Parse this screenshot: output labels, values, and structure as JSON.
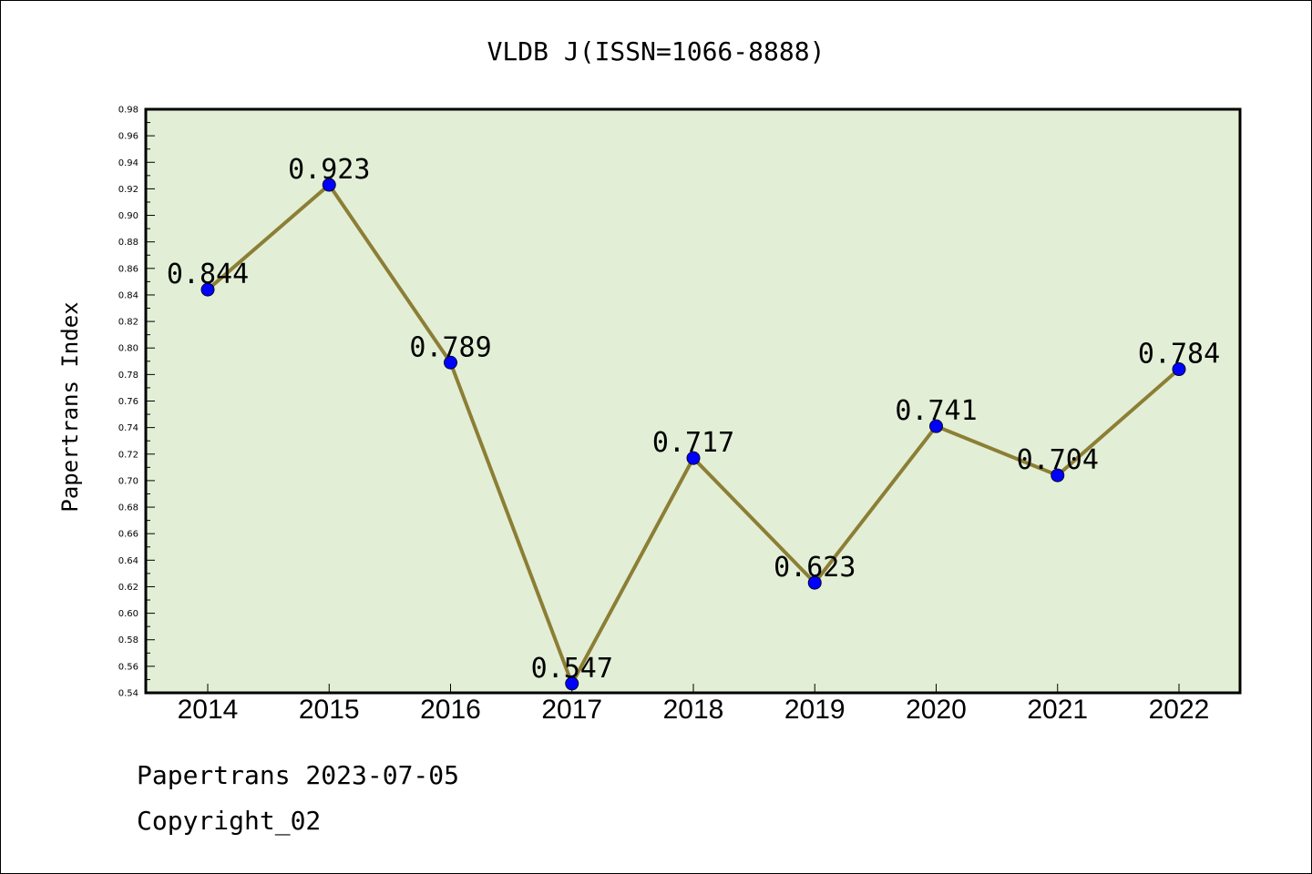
{
  "chart_data": {
    "type": "line",
    "title": "VLDB J(ISSN=1066-8888)",
    "xlabel": "",
    "ylabel": "Papertrans Index",
    "categories": [
      "2014",
      "2015",
      "2016",
      "2017",
      "2018",
      "2019",
      "2020",
      "2021",
      "2022"
    ],
    "series": [
      {
        "values": [
          0.844,
          0.923,
          0.789,
          0.547,
          0.717,
          0.623,
          0.741,
          0.704,
          0.784
        ],
        "labels": [
          "0.844",
          "0.923",
          "0.789",
          "0.547",
          "0.717",
          "0.623",
          "0.741",
          "0.704",
          "0.784"
        ]
      }
    ],
    "ylim": [
      0.54,
      0.98
    ],
    "yticks": [
      "0.54",
      "0.56",
      "0.58",
      "0.60",
      "0.62",
      "0.64",
      "0.66",
      "0.68",
      "0.70",
      "0.72",
      "0.74",
      "0.76",
      "0.78",
      "0.80",
      "0.82",
      "0.84",
      "0.86",
      "0.88",
      "0.90",
      "0.92",
      "0.94",
      "0.96",
      "0.98"
    ],
    "grid": false,
    "colors": {
      "background": "#e2efd6",
      "line": "#8c7e35",
      "marker": "#0000ff"
    }
  },
  "footer": {
    "line1": "Papertrans 2023-07-05",
    "line2": "Copyright_02"
  }
}
